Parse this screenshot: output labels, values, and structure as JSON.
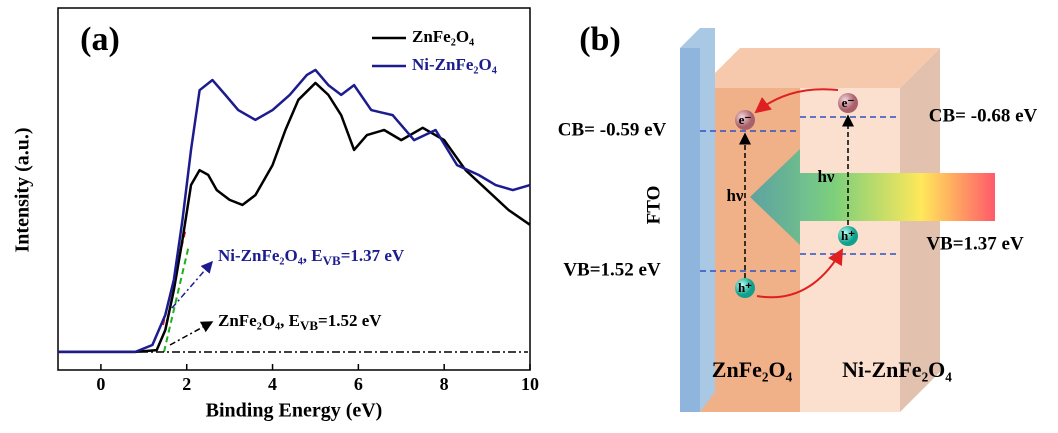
{
  "chart_data": {
    "type": "line",
    "panel_label": "(a)",
    "x_label": "Binding Energy (eV)",
    "y_label": "Intensity (a.u.)",
    "xlim": [
      -1,
      10
    ],
    "ylim": [
      0,
      100
    ],
    "xticks": [
      0,
      2,
      4,
      6,
      8,
      10
    ],
    "legend": "upper right",
    "series": [
      {
        "name": "ZnFe₂O₄",
        "color": "#000000",
        "x": [
          -1,
          0.8,
          1.3,
          1.5,
          1.7,
          1.9,
          2.1,
          2.3,
          2.5,
          2.7,
          3.0,
          3.3,
          3.6,
          4.0,
          4.3,
          4.6,
          5.0,
          5.3,
          5.6,
          5.9,
          6.2,
          6.6,
          7.0,
          7.5,
          8.0,
          8.5,
          9.0,
          9.5,
          10
        ],
        "values": [
          5.0,
          5.0,
          5.5,
          11.0,
          22.1,
          35.9,
          51.1,
          55.2,
          53.9,
          49.7,
          47.0,
          45.6,
          48.3,
          56.6,
          66.3,
          74.6,
          79.3,
          76.0,
          70.4,
          60.8,
          64.9,
          66.3,
          63.5,
          66.9,
          63.5,
          55.2,
          49.7,
          44.2,
          40.1
        ]
      },
      {
        "name": "Ni-ZnFe₂O₄",
        "color": "#1c1c8f",
        "x": [
          -1,
          0.8,
          1.2,
          1.5,
          1.7,
          1.9,
          2.1,
          2.3,
          2.6,
          2.9,
          3.2,
          3.6,
          4.0,
          4.4,
          4.8,
          5.0,
          5.3,
          5.6,
          5.9,
          6.3,
          6.8,
          7.3,
          7.8,
          8.3,
          8.8,
          9.2,
          9.6,
          10
        ],
        "values": [
          5.0,
          5.0,
          6.9,
          15.2,
          24.9,
          41.4,
          60.8,
          77.3,
          80.1,
          76.0,
          71.8,
          69.1,
          71.8,
          76.0,
          81.5,
          82.9,
          78.7,
          76.0,
          78.7,
          71.8,
          70.4,
          63.5,
          66.3,
          56.6,
          53.9,
          51.1,
          49.7,
          51.1
        ]
      }
    ],
    "annotations": [
      {
        "text": "Ni-ZnFe₂O₄, E",
        "sub": "VB",
        "rest": "=1.37 eV"
      },
      {
        "text": "ZnFe₂O₄, E",
        "sub": "VB",
        "rest": "=1.52 eV"
      }
    ]
  },
  "diagram": {
    "panel_label": "(b)",
    "fto": "FTO",
    "left_cb": "CB= -0.59 eV",
    "right_cb": "CB= -0.68 eV",
    "left_vb": "VB=1.52 eV",
    "right_vb": "VB=1.37 eV",
    "photon": "hν",
    "electron": "e⁻",
    "hole": "h⁺",
    "left_material": "ZnFe₂O₄",
    "right_material": "Ni-ZnFe₂O₄"
  }
}
